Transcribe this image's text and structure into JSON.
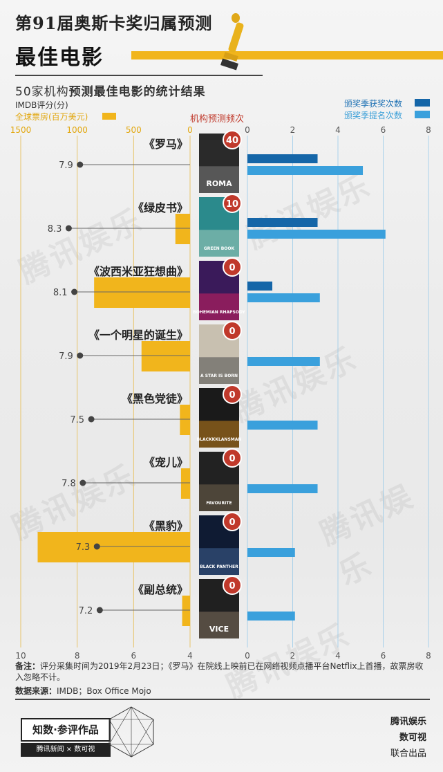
{
  "header": {
    "title_top": "第91届奥斯卡奖归属预测",
    "title_main": "最佳电影",
    "subtitle_plain": "50家机构",
    "subtitle_bold": "预测最佳电影的统计结果"
  },
  "legend": {
    "imdb": "IMDB评分(分)",
    "box_office": "全球票房(百万美元)",
    "predictions": "机构预测频次",
    "wins": "颁奖季获奖次数",
    "noms": "颁奖季提名次数"
  },
  "colors": {
    "gold": "#f1b51c",
    "dark_blue": "#1566a8",
    "light_blue": "#3aa0dc",
    "badge_red": "#c0392b"
  },
  "watermark": "腾讯娱乐",
  "chart_data": {
    "type": "bar",
    "categories": [
      "《罗马》",
      "《绿皮书》",
      "《波西米亚狂想曲》",
      "《一个明星的诞生》",
      "《黑色党徒》",
      "《宠儿》",
      "《黑豹》",
      "《副总统》"
    ],
    "poster_labels": [
      "ROMA",
      "GREEN BOOK",
      "BOHEMIAN RHAPSODY",
      "A STAR IS BORN",
      "BLACKKKLANSMAN",
      "FAVOURITE",
      "BLACK PANTHER",
      "VICE"
    ],
    "box_office_axis": {
      "ticks": [
        "1500",
        "1000",
        "500",
        "0"
      ],
      "range": [
        1500,
        0
      ]
    },
    "imdb_axis": {
      "ticks": [
        "10",
        "8",
        "6",
        "4"
      ],
      "range": [
        10,
        4
      ]
    },
    "award_axis": {
      "ticks": [
        "0",
        "2",
        "4",
        "6",
        "8"
      ],
      "range": [
        0,
        8
      ]
    },
    "series": [
      {
        "name": "全球票房(百万美元)",
        "values": [
          0,
          130,
          850,
          430,
          90,
          80,
          1350,
          70
        ]
      },
      {
        "name": "IMDB评分(分)",
        "values": [
          7.9,
          8.3,
          8.1,
          7.9,
          7.5,
          7.8,
          7.3,
          7.2
        ]
      },
      {
        "name": "机构预测频次",
        "values": [
          40,
          10,
          0,
          0,
          0,
          0,
          0,
          0
        ]
      },
      {
        "name": "颁奖季获奖次数",
        "values": [
          3.1,
          3.1,
          1.1,
          0,
          0,
          0,
          0,
          0
        ]
      },
      {
        "name": "颁奖季提名次数",
        "values": [
          5.1,
          6.1,
          3.2,
          3.2,
          3.1,
          3.1,
          2.1,
          2.1
        ]
      }
    ],
    "imdb_labels": [
      "7.9",
      "8.3",
      "8.1",
      "7.9",
      "7.5",
      "7.8",
      "7.3",
      "7.2"
    ],
    "prediction_labels": [
      "40",
      "10",
      "0",
      "0",
      "0",
      "0",
      "0",
      "0"
    ]
  },
  "footer": {
    "note_label": "备注：",
    "note_text": "评分采集时间为2019年2月23日；《罗马》在院线上映前已在网络视频点播平台Netflix上首播，故票房收入忽略不计。",
    "source_label": "数据来源：",
    "source_text": "IMDB；Box Office Mojo",
    "badge": "知数·参评作品",
    "badge_sub": "腾讯新闻 × 数可视",
    "credit_1": "腾讯娱乐",
    "credit_2": "数可视",
    "credit_3": "联合出品"
  }
}
